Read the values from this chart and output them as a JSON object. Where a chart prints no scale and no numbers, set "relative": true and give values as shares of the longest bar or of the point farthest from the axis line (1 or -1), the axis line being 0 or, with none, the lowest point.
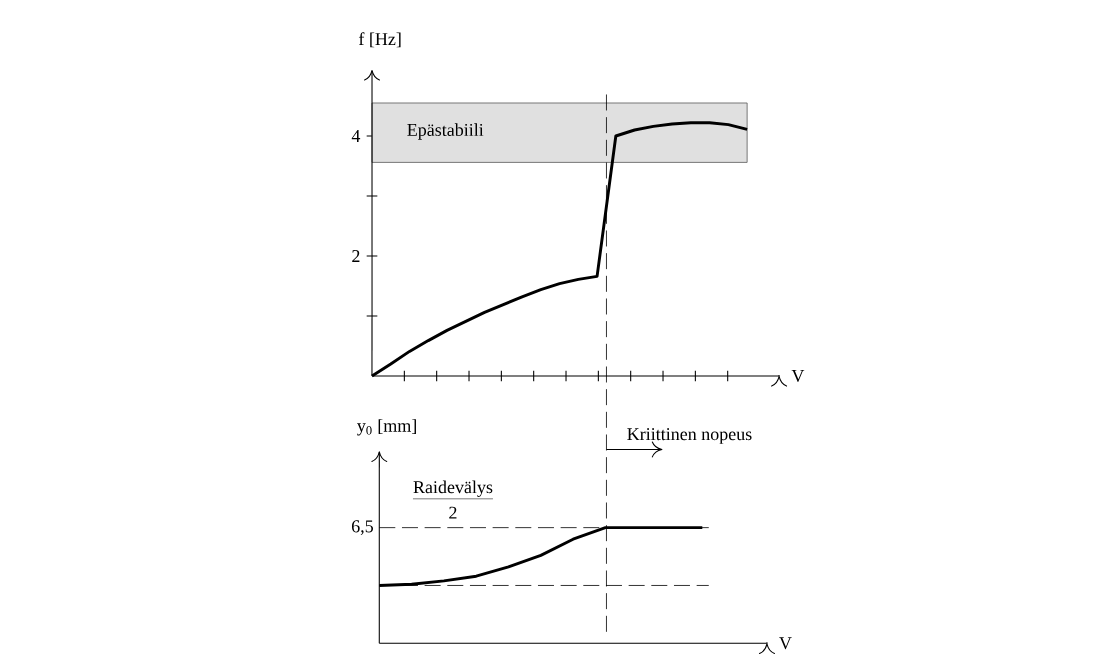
{
  "chart_data": [
    {
      "type": "line",
      "ylabel": "f [Hz]",
      "xlabel": "V",
      "color": "#000000",
      "marker": "none",
      "tick_labels": "y",
      "categories": [
        null,
        null,
        null,
        null,
        null,
        null,
        null,
        null,
        null,
        null,
        null,
        null,
        null,
        null,
        null,
        null,
        null,
        null,
        null,
        null,
        null
      ],
      "values": [
        0,
        0.2,
        0.41,
        0.59,
        0.76,
        0.91,
        1.06,
        1.19,
        1.32,
        1.44,
        1.54,
        1.61,
        1.66,
        4.0,
        4.1,
        4.16,
        4.2,
        4.22,
        4.22,
        4.19,
        4.11
      ],
      "ylim": [
        0,
        5.1
      ],
      "yticks": [
        {
          "value": 1,
          "label": null
        },
        2,
        {
          "value": 3,
          "label": null
        },
        4
      ],
      "bands": [
        {
          "axis": "y",
          "from": 3.56,
          "to": 4.55,
          "label": "Epästabiili",
          "color": "#e0e0e0"
        }
      ],
      "annotations": [
        "Kriittinen nopeus"
      ]
    },
    {
      "type": "line",
      "ylabel": "y$_{0}$ [mm]",
      "xlabel": "V",
      "color": "#000000",
      "marker": "none",
      "relative": true,
      "categories": [
        null,
        null,
        null,
        null,
        null,
        null,
        null,
        null,
        null,
        null,
        null
      ],
      "values": [
        0.5,
        0.51,
        0.54,
        0.58,
        0.66,
        0.76,
        0.9,
        1.0,
        1.0,
        1.0,
        1.0
      ],
      "ref_lines": [
        {
          "axis": "y",
          "value": 1,
          "line_style": "dashed"
        },
        {
          "axis": "y",
          "value": 0.5,
          "line_style": "dashed"
        }
      ],
      "annotations": [
        "Raidevälys",
        "2",
        "6,5"
      ]
    }
  ]
}
